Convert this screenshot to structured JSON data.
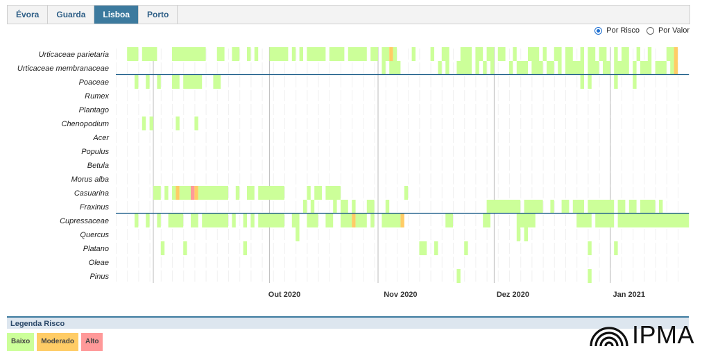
{
  "tabs": [
    {
      "label": "Évora",
      "active": false
    },
    {
      "label": "Guarda",
      "active": false
    },
    {
      "label": "Lisboa",
      "active": true
    },
    {
      "label": "Porto",
      "active": false
    }
  ],
  "radio": {
    "risco": "Por Risco",
    "valor": "Por Valor",
    "selected": "risco"
  },
  "legend": {
    "title": "Legenda Risco",
    "baixo": "Baixo",
    "moderado": "Moderado",
    "alto": "Alto"
  },
  "colors": {
    "baixo": "#ccff99",
    "moderado": "#ffcc66",
    "alto": "#ff9999",
    "faint": "#f1f1f1",
    "separator": "#1f5f8b",
    "gridline": "#bbbbbb"
  },
  "logo": {
    "text": "IPMA"
  },
  "chart_data": {
    "type": "heatmap",
    "x_start": "2020-09-01",
    "x_end": "2021-01-31",
    "x_ticks": [
      {
        "label": "Out 2020",
        "date": "2020-10-01"
      },
      {
        "label": "Nov 2020",
        "date": "2020-11-01"
      },
      {
        "label": "Dez 2020",
        "date": "2020-12-01"
      },
      {
        "label": "Jan 2021",
        "date": "2021-01-01"
      }
    ],
    "week_lines": [
      "2020-09-11",
      "2020-10-12",
      "2020-11-10",
      "2020-12-11",
      "2021-01-11"
    ],
    "separators_after": [
      "Urticaceae membranaceae",
      "Fraxinus"
    ],
    "levels": [
      "Baixo",
      "Moderado",
      "Alto"
    ],
    "series": [
      {
        "name": "Urticaceae parietaria",
        "runs": [
          [
            "2020-09-04",
            "2020-09-06",
            "Baixo"
          ],
          [
            "2020-09-08",
            "2020-09-11",
            "Baixo"
          ],
          [
            "2020-09-16",
            "2020-09-24",
            "Baixo"
          ],
          [
            "2020-09-28",
            "2020-09-29",
            "Baixo"
          ],
          [
            "2020-10-02",
            "2020-10-03",
            "Baixo"
          ],
          [
            "2020-10-06",
            "2020-10-06",
            "Baixo"
          ],
          [
            "2020-10-08",
            "2020-10-08",
            "Baixo"
          ],
          [
            "2020-10-12",
            "2020-10-16",
            "Baixo"
          ],
          [
            "2020-10-18",
            "2020-10-18",
            "Baixo"
          ],
          [
            "2020-10-20",
            "2020-10-20",
            "Baixo"
          ],
          [
            "2020-10-22",
            "2020-10-26",
            "Baixo"
          ],
          [
            "2020-10-28",
            "2020-10-31",
            "Baixo"
          ],
          [
            "2020-11-02",
            "2020-11-06",
            "Baixo"
          ],
          [
            "2020-11-08",
            "2020-11-09",
            "Baixo"
          ],
          [
            "2020-11-11",
            "2020-11-12",
            "Baixo"
          ],
          [
            "2020-11-13",
            "2020-11-13",
            "Moderado"
          ],
          [
            "2020-11-14",
            "2020-11-14",
            "Baixo"
          ],
          [
            "2020-11-19",
            "2020-11-19",
            "Baixo"
          ],
          [
            "2020-11-24",
            "2020-11-24",
            "Baixo"
          ],
          [
            "2020-11-27",
            "2020-11-28",
            "Baixo"
          ],
          [
            "2020-12-02",
            "2020-12-04",
            "Baixo"
          ],
          [
            "2020-12-06",
            "2020-12-07",
            "Baixo"
          ],
          [
            "2020-12-09",
            "2020-12-10",
            "Baixo"
          ],
          [
            "2020-12-12",
            "2020-12-13",
            "Baixo"
          ],
          [
            "2020-12-16",
            "2020-12-16",
            "Baixo"
          ],
          [
            "2020-12-20",
            "2020-12-22",
            "Baixo"
          ],
          [
            "2020-12-24",
            "2020-12-24",
            "Baixo"
          ],
          [
            "2020-12-27",
            "2020-12-28",
            "Baixo"
          ],
          [
            "2020-12-30",
            "2020-12-31",
            "Baixo"
          ],
          [
            "2021-01-03",
            "2021-01-03",
            "Baixo"
          ],
          [
            "2021-01-05",
            "2021-01-06",
            "Baixo"
          ],
          [
            "2021-01-08",
            "2021-01-09",
            "Baixo"
          ],
          [
            "2021-01-12",
            "2021-01-12",
            "Baixo"
          ],
          [
            "2021-01-14",
            "2021-01-15",
            "Baixo"
          ],
          [
            "2021-01-18",
            "2021-01-18",
            "Baixo"
          ],
          [
            "2021-01-21",
            "2021-01-21",
            "Baixo"
          ],
          [
            "2021-01-26",
            "2021-01-27",
            "Baixo"
          ],
          [
            "2021-01-28",
            "2021-01-28",
            "Moderado"
          ]
        ]
      },
      {
        "name": "Urticaceae membranaceae",
        "runs": [
          [
            "2020-11-11",
            "2020-11-11",
            "Baixo"
          ],
          [
            "2020-11-13",
            "2020-11-15",
            "Baixo"
          ],
          [
            "2020-11-26",
            "2020-11-26",
            "Baixo"
          ],
          [
            "2020-11-28",
            "2020-11-28",
            "Baixo"
          ],
          [
            "2020-12-01",
            "2020-12-04",
            "Baixo"
          ],
          [
            "2020-12-06",
            "2020-12-06",
            "Baixo"
          ],
          [
            "2020-12-08",
            "2020-12-08",
            "Baixo"
          ],
          [
            "2020-12-10",
            "2020-12-10",
            "Baixo"
          ],
          [
            "2020-12-15",
            "2020-12-15",
            "Baixo"
          ],
          [
            "2020-12-17",
            "2020-12-19",
            "Baixo"
          ],
          [
            "2020-12-21",
            "2020-12-23",
            "Baixo"
          ],
          [
            "2020-12-25",
            "2020-12-26",
            "Baixo"
          ],
          [
            "2020-12-28",
            "2020-12-28",
            "Baixo"
          ],
          [
            "2020-12-30",
            "2021-01-03",
            "Baixo"
          ],
          [
            "2021-01-05",
            "2021-01-07",
            "Baixo"
          ],
          [
            "2021-01-09",
            "2021-01-10",
            "Baixo"
          ],
          [
            "2021-01-12",
            "2021-01-15",
            "Baixo"
          ],
          [
            "2021-01-17",
            "2021-01-17",
            "Baixo"
          ],
          [
            "2021-01-19",
            "2021-01-21",
            "Baixo"
          ],
          [
            "2021-01-23",
            "2021-01-25",
            "Baixo"
          ],
          [
            "2021-01-27",
            "2021-01-27",
            "Baixo"
          ],
          [
            "2021-01-28",
            "2021-01-28",
            "Moderado"
          ]
        ]
      },
      {
        "name": "Poaceae",
        "runs": [
          [
            "2020-09-06",
            "2020-09-06",
            "Baixo"
          ],
          [
            "2020-09-09",
            "2020-09-09",
            "Baixo"
          ],
          [
            "2020-09-12",
            "2020-09-12",
            "Baixo"
          ],
          [
            "2020-09-16",
            "2020-09-17",
            "Baixo"
          ],
          [
            "2020-09-19",
            "2020-09-23",
            "Baixo"
          ],
          [
            "2020-09-27",
            "2020-09-28",
            "Baixo"
          ],
          [
            "2021-01-03",
            "2021-01-03",
            "Baixo"
          ],
          [
            "2021-01-05",
            "2021-01-05",
            "Baixo"
          ],
          [
            "2021-01-12",
            "2021-01-12",
            "Baixo"
          ],
          [
            "2021-01-17",
            "2021-01-17",
            "Baixo"
          ]
        ]
      },
      {
        "name": "Rumex",
        "runs": []
      },
      {
        "name": "Plantago",
        "runs": []
      },
      {
        "name": "Chenopodium",
        "runs": [
          [
            "2020-09-08",
            "2020-09-08",
            "Baixo"
          ],
          [
            "2020-09-10",
            "2020-09-10",
            "Baixo"
          ],
          [
            "2020-09-17",
            "2020-09-17",
            "Baixo"
          ],
          [
            "2020-09-22",
            "2020-09-22",
            "Baixo"
          ]
        ]
      },
      {
        "name": "Acer",
        "runs": []
      },
      {
        "name": "Populus",
        "runs": []
      },
      {
        "name": "Betula",
        "runs": []
      },
      {
        "name": "Morus alba",
        "runs": []
      },
      {
        "name": "Casuarina",
        "runs": [
          [
            "2020-09-11",
            "2020-09-12",
            "Baixo"
          ],
          [
            "2020-09-14",
            "2020-09-14",
            "Baixo"
          ],
          [
            "2020-09-16",
            "2020-09-16",
            "Baixo"
          ],
          [
            "2020-09-17",
            "2020-09-17",
            "Moderado"
          ],
          [
            "2020-09-18",
            "2020-09-20",
            "Baixo"
          ],
          [
            "2020-09-21",
            "2020-09-21",
            "Alto"
          ],
          [
            "2020-09-22",
            "2020-09-22",
            "Moderado"
          ],
          [
            "2020-09-23",
            "2020-09-30",
            "Baixo"
          ],
          [
            "2020-10-03",
            "2020-10-03",
            "Baixo"
          ],
          [
            "2020-10-06",
            "2020-10-07",
            "Baixo"
          ],
          [
            "2020-10-09",
            "2020-10-15",
            "Baixo"
          ],
          [
            "2020-10-22",
            "2020-10-22",
            "Baixo"
          ],
          [
            "2020-10-24",
            "2020-10-25",
            "Baixo"
          ],
          [
            "2020-10-27",
            "2020-10-30",
            "Baixo"
          ],
          [
            "2020-11-17",
            "2020-11-17",
            "Baixo"
          ]
        ]
      },
      {
        "name": "Fraxinus",
        "runs": [
          [
            "2020-10-21",
            "2020-10-21",
            "Baixo"
          ],
          [
            "2020-10-23",
            "2020-10-23",
            "Baixo"
          ],
          [
            "2020-10-29",
            "2020-10-29",
            "Baixo"
          ],
          [
            "2020-10-31",
            "2020-11-01",
            "Baixo"
          ],
          [
            "2020-11-03",
            "2020-11-03",
            "Baixo"
          ],
          [
            "2020-11-07",
            "2020-11-08",
            "Baixo"
          ],
          [
            "2020-11-12",
            "2020-11-12",
            "Baixo"
          ],
          [
            "2020-12-09",
            "2020-12-17",
            "Baixo"
          ],
          [
            "2020-12-19",
            "2020-12-23",
            "Baixo"
          ],
          [
            "2020-12-26",
            "2020-12-26",
            "Baixo"
          ],
          [
            "2020-12-29",
            "2020-12-30",
            "Baixo"
          ],
          [
            "2021-01-01",
            "2021-01-03",
            "Baixo"
          ],
          [
            "2021-01-05",
            "2021-01-11",
            "Baixo"
          ],
          [
            "2021-01-13",
            "2021-01-14",
            "Baixo"
          ],
          [
            "2021-01-16",
            "2021-01-17",
            "Baixo"
          ],
          [
            "2021-01-19",
            "2021-01-22",
            "Baixo"
          ],
          [
            "2021-01-24",
            "2021-01-24",
            "Baixo"
          ]
        ]
      },
      {
        "name": "Cupressaceae",
        "runs": [
          [
            "2020-09-06",
            "2020-09-06",
            "Baixo"
          ],
          [
            "2020-09-09",
            "2020-09-09",
            "Baixo"
          ],
          [
            "2020-09-12",
            "2020-09-12",
            "Baixo"
          ],
          [
            "2020-09-15",
            "2020-09-18",
            "Baixo"
          ],
          [
            "2020-09-21",
            "2020-09-22",
            "Baixo"
          ],
          [
            "2020-09-24",
            "2020-09-30",
            "Baixo"
          ],
          [
            "2020-10-02",
            "2020-10-02",
            "Baixo"
          ],
          [
            "2020-10-05",
            "2020-10-05",
            "Baixo"
          ],
          [
            "2020-10-07",
            "2020-10-07",
            "Baixo"
          ],
          [
            "2020-10-09",
            "2020-10-15",
            "Baixo"
          ],
          [
            "2020-10-18",
            "2020-10-19",
            "Baixo"
          ],
          [
            "2020-10-22",
            "2020-10-24",
            "Baixo"
          ],
          [
            "2020-10-27",
            "2020-10-28",
            "Baixo"
          ],
          [
            "2020-10-31",
            "2020-11-02",
            "Baixo"
          ],
          [
            "2020-11-03",
            "2020-11-03",
            "Moderado"
          ],
          [
            "2020-11-04",
            "2020-11-06",
            "Baixo"
          ],
          [
            "2020-11-08",
            "2020-11-08",
            "Baixo"
          ],
          [
            "2020-11-11",
            "2020-11-15",
            "Baixo"
          ],
          [
            "2020-11-16",
            "2020-11-16",
            "Moderado"
          ],
          [
            "2020-11-28",
            "2020-11-29",
            "Baixo"
          ],
          [
            "2020-12-08",
            "2020-12-09",
            "Baixo"
          ],
          [
            "2020-12-17",
            "2020-12-21",
            "Baixo"
          ],
          [
            "2021-01-02",
            "2021-01-05",
            "Baixo"
          ],
          [
            "2021-01-07",
            "2021-01-11",
            "Baixo"
          ],
          [
            "2021-01-13",
            "2021-01-31",
            "Baixo"
          ]
        ]
      },
      {
        "name": "Quercus",
        "runs": [
          [
            "2020-10-19",
            "2020-10-19",
            "Baixo"
          ],
          [
            "2020-12-17",
            "2020-12-17",
            "Baixo"
          ],
          [
            "2020-12-19",
            "2020-12-19",
            "Baixo"
          ]
        ]
      },
      {
        "name": "Platano",
        "runs": [
          [
            "2020-09-13",
            "2020-09-13",
            "Baixo"
          ],
          [
            "2020-09-19",
            "2020-09-19",
            "Baixo"
          ],
          [
            "2020-10-05",
            "2020-10-05",
            "Baixo"
          ],
          [
            "2020-11-21",
            "2020-11-22",
            "Baixo"
          ],
          [
            "2020-11-25",
            "2020-11-25",
            "Baixo"
          ],
          [
            "2020-12-03",
            "2020-12-03",
            "Baixo"
          ],
          [
            "2021-01-05",
            "2021-01-05",
            "Baixo"
          ],
          [
            "2021-01-12",
            "2021-01-12",
            "Baixo"
          ]
        ]
      },
      {
        "name": "Oleae",
        "runs": []
      },
      {
        "name": "Pinus",
        "runs": [
          [
            "2020-12-01",
            "2020-12-01",
            "Baixo"
          ],
          [
            "2021-01-05",
            "2021-01-05",
            "Baixo"
          ]
        ]
      }
    ]
  }
}
